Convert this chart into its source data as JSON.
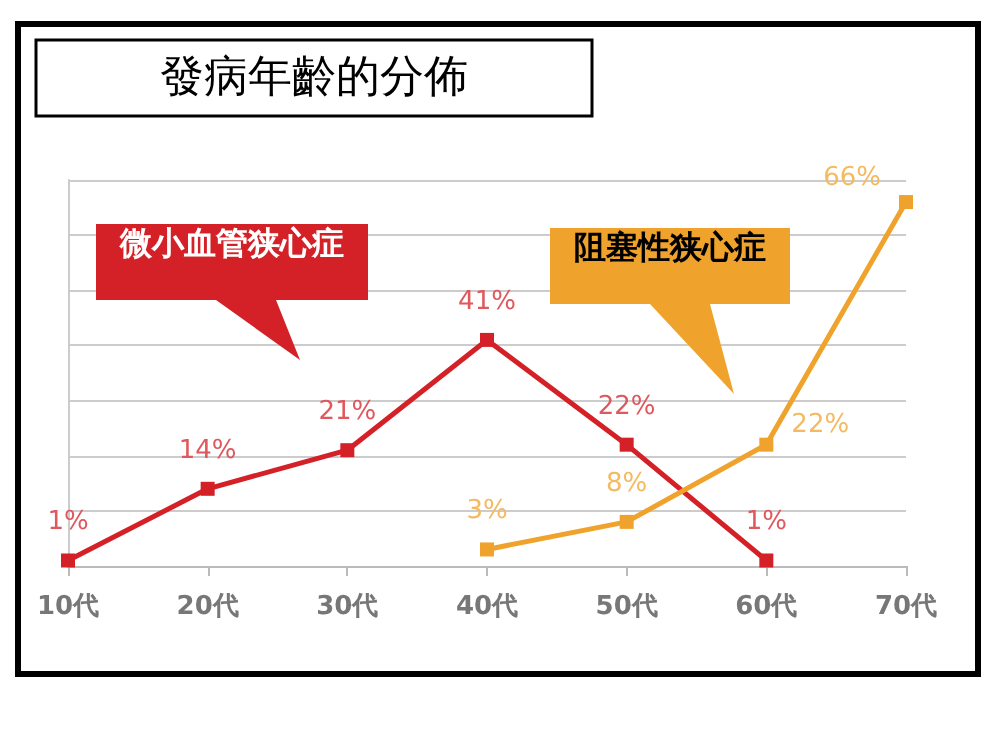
{
  "chart_data": {
    "type": "line",
    "title": "發病年齡的分佈",
    "categories": [
      "10代",
      "20代",
      "30代",
      "40代",
      "50代",
      "60代",
      "70代"
    ],
    "series": [
      {
        "name": "微小血管狭心症",
        "color": "#d42027",
        "values": [
          1,
          14,
          21,
          41,
          22,
          1,
          null
        ],
        "value_labels": [
          "1%",
          "14%",
          "21%",
          "41%",
          "22%",
          "1%",
          null
        ]
      },
      {
        "name": "阻塞性狭心症",
        "color": "#f0a32c",
        "values": [
          null,
          null,
          null,
          3,
          8,
          22,
          66
        ],
        "value_labels": [
          null,
          null,
          null,
          "3%",
          "8%",
          "22%",
          "66%"
        ]
      }
    ],
    "ylim": [
      0,
      70
    ],
    "yticks": [
      {
        "value": 0,
        "label": null
      },
      {
        "value": 10,
        "label": null
      },
      {
        "value": 20,
        "label": null
      },
      {
        "value": 30,
        "label": null
      },
      {
        "value": 40,
        "label": null
      },
      {
        "value": 50,
        "label": null
      },
      {
        "value": 60,
        "label": null
      },
      {
        "value": 70,
        "label": null
      }
    ],
    "tick_labels": "x",
    "grid": "y",
    "marker": "square",
    "line_style": "solid",
    "legend": false
  }
}
